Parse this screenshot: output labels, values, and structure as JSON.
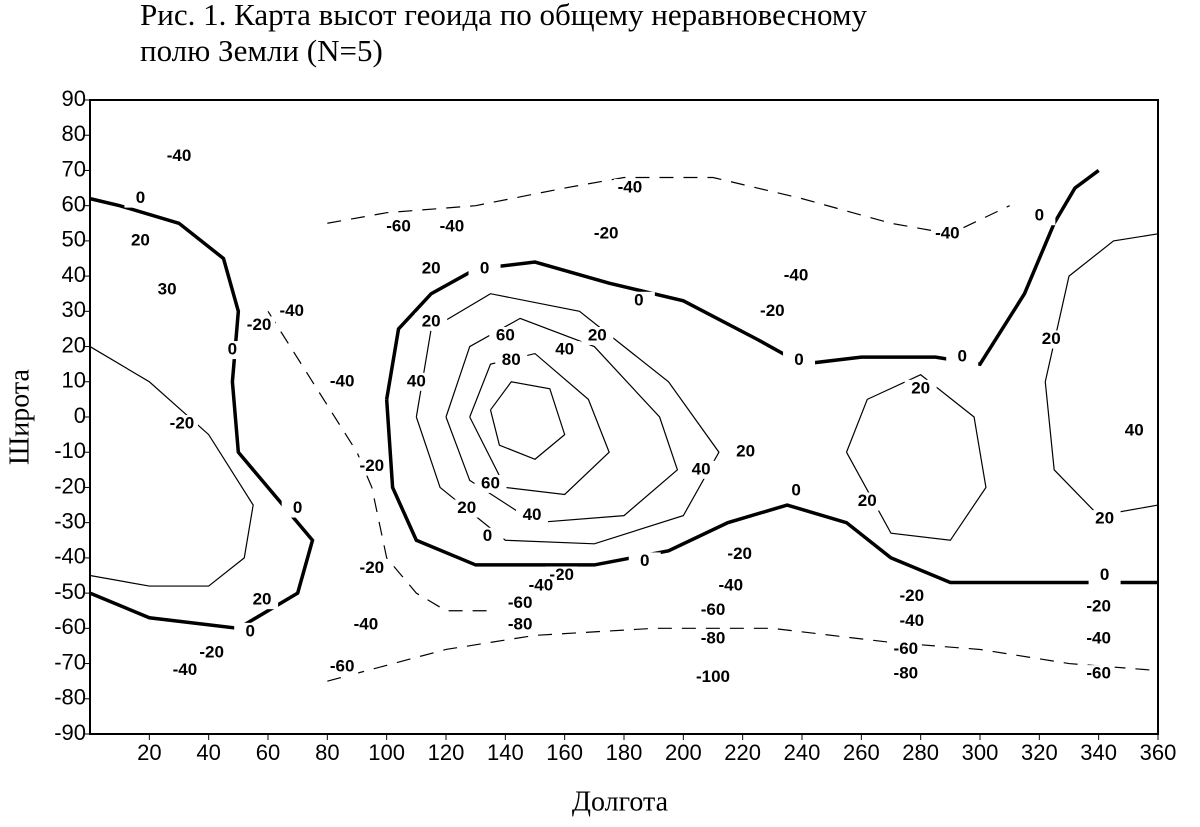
{
  "chart_data": {
    "type": "contour",
    "title_lines": [
      "Рис. 1. Карта высот геоида по общему неравновесному",
      "полю Земли (N=5)"
    ],
    "x_label": "Долгота",
    "y_label": "Широта",
    "xlim": [
      0,
      360
    ],
    "ylim": [
      -90,
      90
    ],
    "xticks": [
      20,
      40,
      60,
      80,
      100,
      120,
      140,
      160,
      180,
      200,
      220,
      240,
      260,
      280,
      300,
      320,
      340,
      360
    ],
    "yticks": [
      -90,
      -80,
      -70,
      -60,
      -50,
      -40,
      -30,
      -20,
      -10,
      0,
      10,
      20,
      30,
      40,
      50,
      60,
      70,
      80,
      90
    ],
    "color": "#000000",
    "contours": [
      {
        "level": 0,
        "lon": [
          100,
          104,
          115,
          130,
          150,
          175,
          200,
          225,
          240,
          260,
          285,
          300,
          315,
          325,
          332,
          340
        ],
        "lat": [
          5,
          25,
          35,
          42,
          44,
          38,
          33,
          22,
          15,
          17,
          17,
          15,
          35,
          55,
          65,
          70
        ]
      },
      {
        "level": 0,
        "lon": [
          100,
          102,
          110,
          130,
          170,
          195,
          215,
          235,
          255,
          270,
          290,
          320,
          360
        ],
        "lat": [
          5,
          -20,
          -35,
          -42,
          -42,
          -38,
          -30,
          -25,
          -30,
          -40,
          -47,
          -47,
          -47
        ]
      },
      {
        "level": 0,
        "lon": [
          0,
          20,
          50,
          70,
          75,
          65,
          50,
          48,
          50,
          45,
          30,
          10,
          0
        ],
        "lat": [
          -50,
          -57,
          -60,
          -50,
          -35,
          -25,
          -10,
          10,
          30,
          45,
          55,
          60,
          62
        ]
      },
      {
        "level": 20,
        "lon": [
          110,
          115,
          135,
          165,
          195,
          212,
          200,
          170,
          140,
          118,
          110
        ],
        "lat": [
          0,
          25,
          35,
          30,
          10,
          -10,
          -28,
          -36,
          -35,
          -20,
          0
        ]
      },
      {
        "level": 40,
        "lon": [
          120,
          128,
          145,
          170,
          192,
          198,
          180,
          150,
          128,
          120
        ],
        "lat": [
          0,
          20,
          28,
          20,
          0,
          -15,
          -28,
          -30,
          -18,
          0
        ]
      },
      {
        "level": 60,
        "lon": [
          128,
          135,
          150,
          168,
          175,
          160,
          140,
          128
        ],
        "lat": [
          0,
          15,
          18,
          5,
          -10,
          -22,
          -20,
          0
        ]
      },
      {
        "level": 80,
        "lon": [
          135,
          142,
          155,
          160,
          150,
          138,
          135
        ],
        "lat": [
          2,
          10,
          8,
          -5,
          -12,
          -8,
          2
        ]
      },
      {
        "level": 20,
        "lon": [
          255,
          262,
          280,
          298,
          302,
          290,
          270,
          255
        ],
        "lat": [
          -10,
          5,
          12,
          0,
          -20,
          -35,
          -33,
          -10
        ]
      },
      {
        "level": 20,
        "lon": [
          0,
          20,
          40,
          52,
          55,
          40,
          20,
          0
        ],
        "lat": [
          -45,
          -48,
          -48,
          -40,
          -25,
          -5,
          10,
          20
        ]
      },
      {
        "level": 20,
        "lon": [
          360,
          340,
          325,
          322,
          330,
          345,
          360
        ],
        "lat": [
          -25,
          -28,
          -15,
          10,
          40,
          50,
          52
        ]
      },
      {
        "level": -20,
        "lon": [
          60,
          75,
          90,
          95,
          100,
          110,
          120,
          135
        ],
        "lat": [
          30,
          10,
          -10,
          -20,
          -40,
          -50,
          -55,
          -55
        ]
      },
      {
        "level": -60,
        "lon": [
          80,
          120,
          150,
          190,
          230,
          270,
          300,
          330,
          360
        ],
        "lat": [
          -75,
          -66,
          -62,
          -60,
          -60,
          -64,
          -66,
          -70,
          -72
        ]
      },
      {
        "level": -40,
        "lon": [
          80,
          100,
          130,
          160,
          180,
          210,
          240,
          270,
          290,
          310
        ],
        "lat": [
          55,
          58,
          60,
          65,
          68,
          68,
          62,
          55,
          52,
          60
        ]
      }
    ],
    "contour_labels": [
      {
        "value": -40,
        "lon": 30,
        "lat": 74
      },
      {
        "value": 0,
        "lon": 17,
        "lat": 62
      },
      {
        "value": 20,
        "lon": 17,
        "lat": 50
      },
      {
        "value": 30,
        "lon": 26,
        "lat": 36
      },
      {
        "value": -60,
        "lon": 104,
        "lat": 54
      },
      {
        "value": -40,
        "lon": 122,
        "lat": 54
      },
      {
        "value": -40,
        "lon": 182,
        "lat": 65
      },
      {
        "value": -20,
        "lon": 174,
        "lat": 52
      },
      {
        "value": 0,
        "lon": 185,
        "lat": 33
      },
      {
        "value": 20,
        "lon": 171,
        "lat": 23
      },
      {
        "value": 60,
        "lon": 140,
        "lat": 23
      },
      {
        "value": 80,
        "lon": 142,
        "lat": 16
      },
      {
        "value": 40,
        "lon": 160,
        "lat": 19
      },
      {
        "value": -20,
        "lon": 230,
        "lat": 30
      },
      {
        "value": -40,
        "lon": 238,
        "lat": 40
      },
      {
        "value": 0,
        "lon": 239,
        "lat": 16
      },
      {
        "value": 0,
        "lon": 294,
        "lat": 17
      },
      {
        "value": 20,
        "lon": 324,
        "lat": 22
      },
      {
        "value": 40,
        "lon": 352,
        "lat": -4
      },
      {
        "value": 20,
        "lon": 342,
        "lat": -29
      },
      {
        "value": 0,
        "lon": 342,
        "lat": -45
      },
      {
        "value": -20,
        "lon": 340,
        "lat": -54
      },
      {
        "value": -40,
        "lon": 340,
        "lat": -63
      },
      {
        "value": -60,
        "lon": 340,
        "lat": -73
      },
      {
        "value": 0,
        "lon": 320,
        "lat": 57
      },
      {
        "value": -40,
        "lon": 289,
        "lat": 52
      },
      {
        "value": 20,
        "lon": 221,
        "lat": -10
      },
      {
        "value": 40,
        "lon": 206,
        "lat": -15
      },
      {
        "value": 0,
        "lon": 238,
        "lat": -21
      },
      {
        "value": 20,
        "lon": 262,
        "lat": -24
      },
      {
        "value": 20,
        "lon": 280,
        "lat": 8
      },
      {
        "value": -20,
        "lon": 219,
        "lat": -39
      },
      {
        "value": -40,
        "lon": 216,
        "lat": -48
      },
      {
        "value": -60,
        "lon": 210,
        "lat": -55
      },
      {
        "value": -80,
        "lon": 210,
        "lat": -63
      },
      {
        "value": -100,
        "lon": 210,
        "lat": -74
      },
      {
        "value": -20,
        "lon": 277,
        "lat": -51
      },
      {
        "value": -40,
        "lon": 277,
        "lat": -58
      },
      {
        "value": -60,
        "lon": 275,
        "lat": -66
      },
      {
        "value": -80,
        "lon": 275,
        "lat": -73
      },
      {
        "value": 0,
        "lon": 187,
        "lat": -41
      },
      {
        "value": -20,
        "lon": 159,
        "lat": -45
      },
      {
        "value": -40,
        "lon": 152,
        "lat": -48
      },
      {
        "value": -60,
        "lon": 145,
        "lat": -53
      },
      {
        "value": -80,
        "lon": 145,
        "lat": -59
      },
      {
        "value": 40,
        "lon": 149,
        "lat": -28
      },
      {
        "value": 60,
        "lon": 135,
        "lat": -19
      },
      {
        "value": 20,
        "lon": 127,
        "lat": -26
      },
      {
        "value": 0,
        "lon": 134,
        "lat": -34
      },
      {
        "value": 20,
        "lon": 115,
        "lat": 27
      },
      {
        "value": 20,
        "lon": 115,
        "lat": 42
      },
      {
        "value": 0,
        "lon": 133,
        "lat": 42
      },
      {
        "value": 40,
        "lon": 110,
        "lat": 10
      },
      {
        "value": -20,
        "lon": 95,
        "lat": -14
      },
      {
        "value": -40,
        "lon": 85,
        "lat": 10
      },
      {
        "value": -40,
        "lon": 68,
        "lat": 30
      },
      {
        "value": -20,
        "lon": 57,
        "lat": 26
      },
      {
        "value": 0,
        "lon": 48,
        "lat": 19
      },
      {
        "value": -20,
        "lon": 31,
        "lat": -2
      },
      {
        "value": 0,
        "lon": 70,
        "lat": -26
      },
      {
        "value": 20,
        "lon": 58,
        "lat": -52
      },
      {
        "value": 0,
        "lon": 54,
        "lat": -61
      },
      {
        "value": -20,
        "lon": 41,
        "lat": -67
      },
      {
        "value": -40,
        "lon": 32,
        "lat": -72
      },
      {
        "value": -20,
        "lon": 95,
        "lat": -43
      },
      {
        "value": -40,
        "lon": 93,
        "lat": -59
      },
      {
        "value": -60,
        "lon": 85,
        "lat": -71
      }
    ]
  }
}
